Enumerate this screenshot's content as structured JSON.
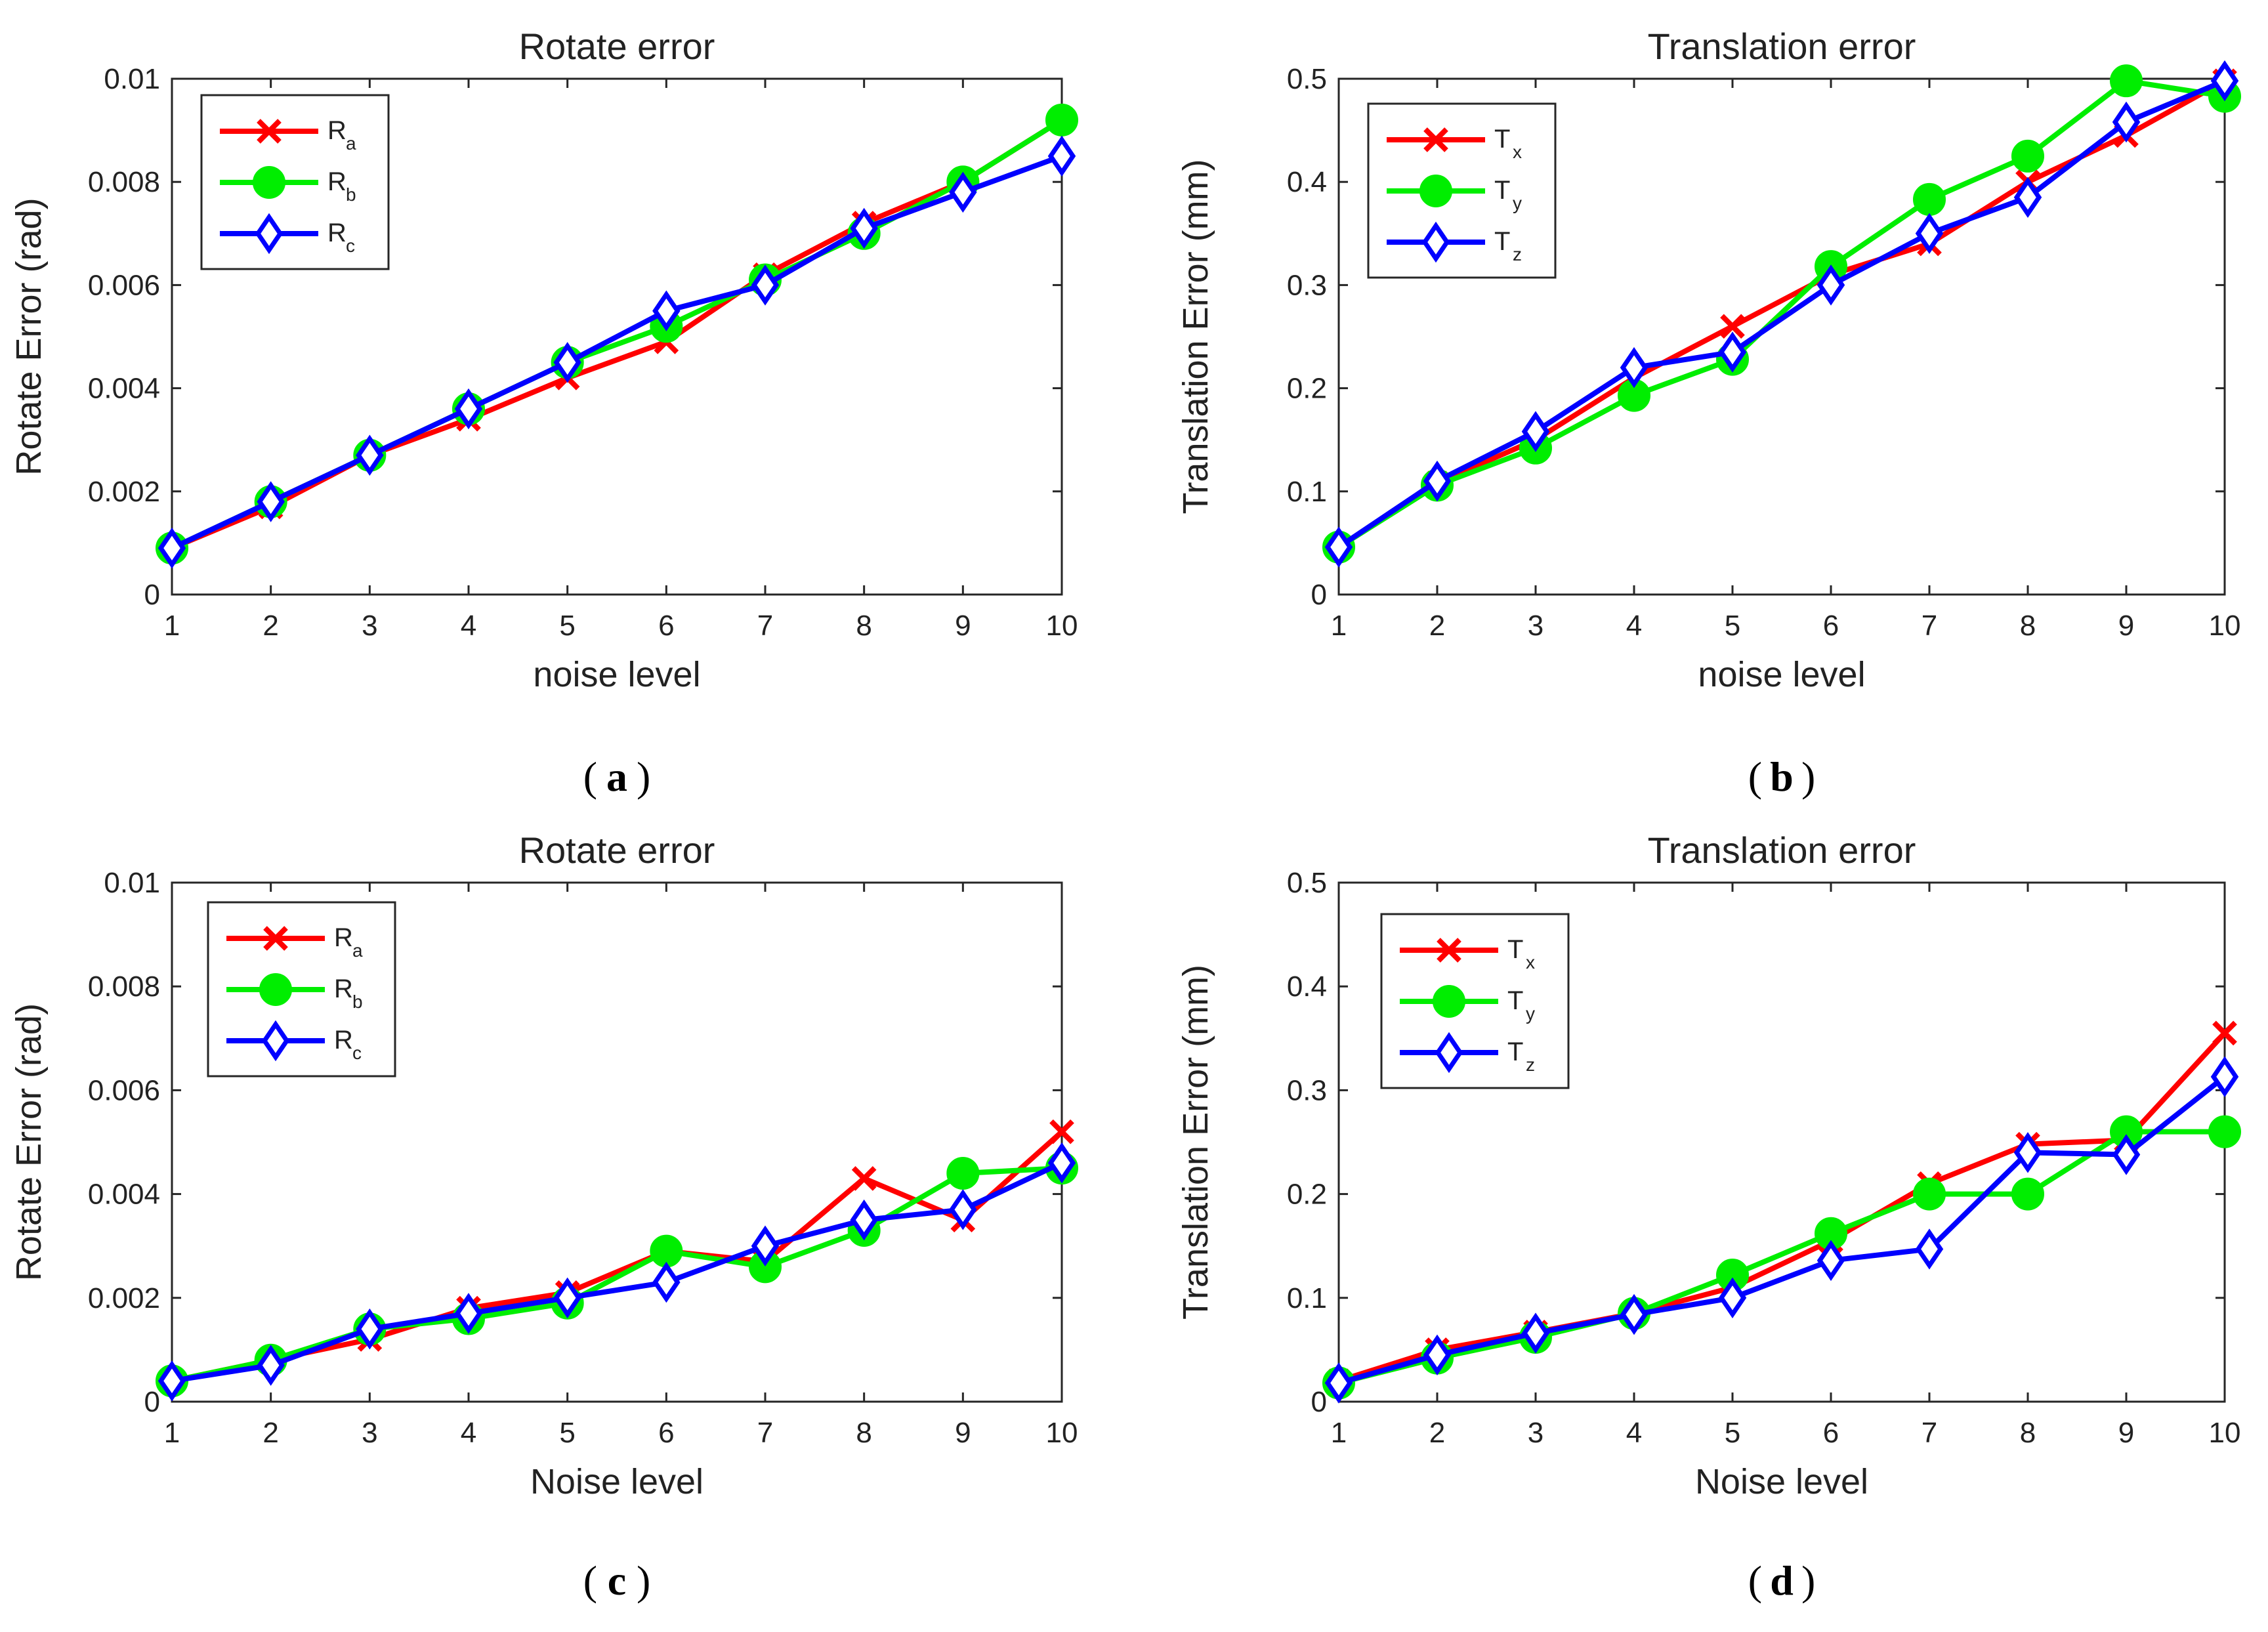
{
  "colors": {
    "red": "#ff0000",
    "green": "#00ee00",
    "blue": "#0000ff"
  },
  "chart_data": [
    {
      "type": "line",
      "panel": "a",
      "title": "Rotate error",
      "xlabel": "noise level",
      "ylabel": "Rotate Error (rad)",
      "xlim": [
        1,
        10
      ],
      "ylim": [
        0,
        0.01
      ],
      "xticks": [
        "1",
        "2",
        "3",
        "4",
        "5",
        "6",
        "7",
        "8",
        "9",
        "10"
      ],
      "yticks": [
        "0",
        "0.002",
        "0.004",
        "0.006",
        "0.008",
        "0.01"
      ],
      "x": [
        1,
        2,
        3,
        4,
        5,
        6,
        7,
        8,
        9,
        10
      ],
      "series": [
        {
          "name": "R",
          "sub": "a",
          "marker": "x",
          "color": "red",
          "values": [
            0.0009,
            0.0017,
            0.0027,
            0.0034,
            0.0042,
            0.0049,
            0.0062,
            0.0072,
            0.008,
            0.0092
          ]
        },
        {
          "name": "R",
          "sub": "b",
          "marker": "o",
          "color": "green",
          "values": [
            0.0009,
            0.0018,
            0.0027,
            0.0036,
            0.0045,
            0.0052,
            0.0061,
            0.007,
            0.008,
            0.0092
          ]
        },
        {
          "name": "R",
          "sub": "c",
          "marker": "d",
          "color": "blue",
          "values": [
            0.0009,
            0.0018,
            0.0027,
            0.0036,
            0.0045,
            0.0055,
            0.006,
            0.0071,
            0.0078,
            0.0085
          ]
        }
      ],
      "caption": "a"
    },
    {
      "type": "line",
      "panel": "b",
      "title": "Translation error",
      "xlabel": "noise level",
      "ylabel": "Translation Error (mm)",
      "xlim": [
        1,
        10
      ],
      "ylim": [
        0,
        0.5
      ],
      "xticks": [
        "1",
        "2",
        "3",
        "4",
        "5",
        "6",
        "7",
        "8",
        "9",
        "10"
      ],
      "yticks": [
        "0",
        "0.1",
        "0.2",
        "0.3",
        "0.4",
        "0.5"
      ],
      "x": [
        1,
        2,
        3,
        4,
        5,
        6,
        7,
        8,
        9,
        10
      ],
      "series": [
        {
          "name": "T",
          "sub": "x",
          "marker": "x",
          "color": "red",
          "values": [
            0.046,
            0.108,
            0.15,
            0.21,
            0.26,
            0.31,
            0.34,
            0.4,
            0.445,
            0.498
          ]
        },
        {
          "name": "T",
          "sub": "y",
          "marker": "o",
          "color": "green",
          "values": [
            0.046,
            0.106,
            0.142,
            0.193,
            0.228,
            0.318,
            0.383,
            0.425,
            0.498,
            0.483
          ]
        },
        {
          "name": "T",
          "sub": "z",
          "marker": "d",
          "color": "blue",
          "values": [
            0.046,
            0.11,
            0.158,
            0.22,
            0.235,
            0.3,
            0.35,
            0.385,
            0.458,
            0.498
          ]
        }
      ],
      "caption": "b"
    },
    {
      "type": "line",
      "panel": "c",
      "title": "Rotate error",
      "xlabel": "Noise level",
      "ylabel": "Rotate Error (rad)",
      "xlim": [
        1,
        10
      ],
      "ylim": [
        0,
        0.01
      ],
      "xticks": [
        "1",
        "2",
        "3",
        "4",
        "5",
        "6",
        "7",
        "8",
        "9",
        "10"
      ],
      "yticks": [
        "0",
        "0.002",
        "0.004",
        "0.006",
        "0.008",
        "0.01"
      ],
      "x": [
        1,
        2,
        3,
        4,
        5,
        6,
        7,
        8,
        9,
        10
      ],
      "series": [
        {
          "name": "R",
          "sub": "a",
          "marker": "x",
          "color": "red",
          "values": [
            0.0004,
            0.0008,
            0.0012,
            0.0018,
            0.0021,
            0.0029,
            0.0027,
            0.0043,
            0.0035,
            0.0052
          ]
        },
        {
          "name": "R",
          "sub": "b",
          "marker": "o",
          "color": "green",
          "values": [
            0.0004,
            0.0008,
            0.0014,
            0.0016,
            0.0019,
            0.0029,
            0.0026,
            0.0033,
            0.0044,
            0.0045
          ]
        },
        {
          "name": "R",
          "sub": "c",
          "marker": "d",
          "color": "blue",
          "values": [
            0.0004,
            0.0007,
            0.0014,
            0.0017,
            0.002,
            0.0023,
            0.003,
            0.0035,
            0.0037,
            0.0046
          ]
        }
      ],
      "caption": "c"
    },
    {
      "type": "line",
      "panel": "d",
      "title": "Translation error",
      "xlabel": "Noise level",
      "ylabel": "Translation Error (mm)",
      "xlim": [
        1,
        10
      ],
      "ylim": [
        0,
        0.5
      ],
      "xticks": [
        "1",
        "2",
        "3",
        "4",
        "5",
        "6",
        "7",
        "8",
        "9",
        "10"
      ],
      "yticks": [
        "0",
        "0.1",
        "0.2",
        "0.3",
        "0.4",
        "0.5"
      ],
      "x": [
        1,
        2,
        3,
        4,
        5,
        6,
        7,
        8,
        9,
        10
      ],
      "series": [
        {
          "name": "T",
          "sub": "x",
          "marker": "x",
          "color": "red",
          "values": [
            0.02,
            0.05,
            0.067,
            0.085,
            0.11,
            0.155,
            0.21,
            0.248,
            0.252,
            0.355
          ]
        },
        {
          "name": "T",
          "sub": "y",
          "marker": "o",
          "color": "green",
          "values": [
            0.018,
            0.042,
            0.062,
            0.085,
            0.122,
            0.162,
            0.2,
            0.2,
            0.26,
            0.26
          ]
        },
        {
          "name": "T",
          "sub": "z",
          "marker": "d",
          "color": "blue",
          "values": [
            0.018,
            0.045,
            0.066,
            0.084,
            0.1,
            0.136,
            0.147,
            0.24,
            0.238,
            0.313
          ]
        }
      ],
      "caption": "d"
    }
  ]
}
